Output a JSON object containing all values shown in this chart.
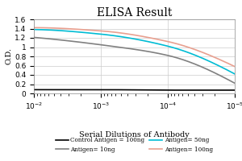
{
  "title": "ELISA Result",
  "ylabel": "O.D.",
  "xlabel": "Serial Dilutions of Antibody",
  "x_values": [
    0.01,
    0.001,
    0.0001,
    1e-05
  ],
  "control_antigen_100ng": [
    0.08,
    0.08,
    0.07,
    0.07
  ],
  "antigen_10ng": [
    1.21,
    1.05,
    0.82,
    0.22
  ],
  "antigen_50ng": [
    1.38,
    1.28,
    1.02,
    0.42
  ],
  "antigen_100ng": [
    1.42,
    1.35,
    1.12,
    0.58
  ],
  "colors": {
    "control": "#000000",
    "antigen10": "#808080",
    "antigen50": "#00bcd4",
    "antigen100": "#e8a090"
  },
  "ylim": [
    0,
    1.6
  ],
  "yticks": [
    0,
    0.2,
    0.4,
    0.6,
    0.8,
    1.0,
    1.2,
    1.4,
    1.6
  ],
  "legend_labels": [
    "Control Antigen = 100ng",
    "Antigen= 10ng",
    "Antigen= 50ng",
    "Antigen= 100ng"
  ],
  "background_color": "#ffffff",
  "title_fontsize": 10,
  "label_fontsize": 7,
  "tick_fontsize": 6.5
}
